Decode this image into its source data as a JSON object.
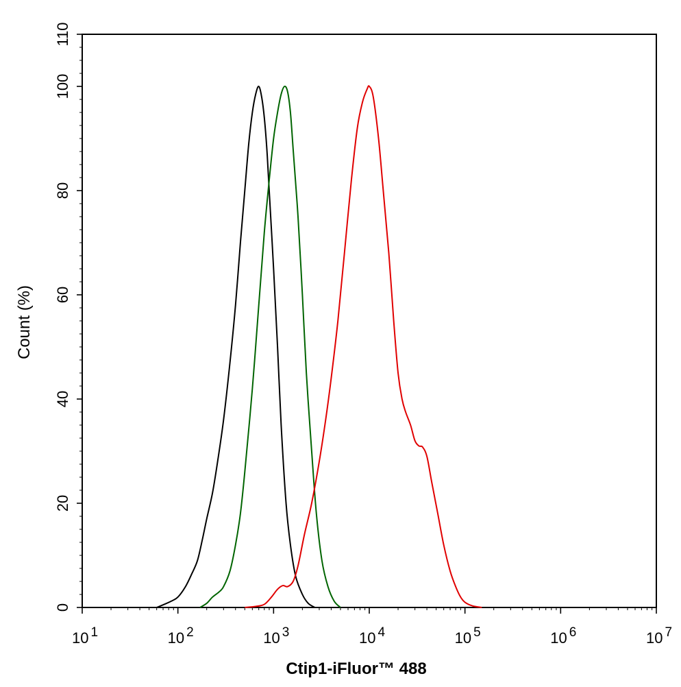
{
  "chart_data": {
    "type": "line",
    "xlabel": "Ctip1-iFluor™ 488",
    "ylabel": "Count  (%)",
    "xscale": "log",
    "xlim": [
      10,
      10000000
    ],
    "ylim": [
      0,
      110
    ],
    "x_ticks": [
      {
        "base": "10",
        "exp": "1",
        "value": 10
      },
      {
        "base": "10",
        "exp": "2",
        "value": 100
      },
      {
        "base": "10",
        "exp": "3",
        "value": 1000
      },
      {
        "base": "10",
        "exp": "4",
        "value": 10000
      },
      {
        "base": "10",
        "exp": "5",
        "value": 100000
      },
      {
        "base": "10",
        "exp": "6",
        "value": 1000000
      },
      {
        "base": "10",
        "exp": "7",
        "value": 10000000
      }
    ],
    "y_ticks": [
      "0",
      "20",
      "40",
      "60",
      "80",
      "100",
      "110"
    ],
    "grid": false,
    "legend": "none",
    "series": [
      {
        "color": "#000000",
        "points": [
          [
            60,
            0
          ],
          [
            70,
            0.5
          ],
          [
            85,
            1.2
          ],
          [
            100,
            2
          ],
          [
            120,
            4
          ],
          [
            140,
            6.5
          ],
          [
            160,
            9
          ],
          [
            180,
            13
          ],
          [
            200,
            17
          ],
          [
            230,
            22
          ],
          [
            260,
            28
          ],
          [
            300,
            36
          ],
          [
            350,
            47
          ],
          [
            400,
            58
          ],
          [
            450,
            70
          ],
          [
            500,
            80
          ],
          [
            550,
            89
          ],
          [
            600,
            95
          ],
          [
            650,
            98.5
          ],
          [
            700,
            100
          ],
          [
            750,
            98
          ],
          [
            800,
            94
          ],
          [
            850,
            88
          ],
          [
            900,
            80
          ],
          [
            1000,
            65
          ],
          [
            1100,
            50
          ],
          [
            1200,
            35
          ],
          [
            1350,
            20
          ],
          [
            1500,
            12
          ],
          [
            1700,
            6
          ],
          [
            2000,
            2.5
          ],
          [
            2300,
            0.8
          ],
          [
            2700,
            0
          ]
        ]
      },
      {
        "color": "#006400",
        "points": [
          [
            170,
            0
          ],
          [
            200,
            0.8
          ],
          [
            230,
            2
          ],
          [
            270,
            3
          ],
          [
            300,
            4
          ],
          [
            350,
            7
          ],
          [
            400,
            12
          ],
          [
            450,
            18
          ],
          [
            500,
            26
          ],
          [
            600,
            42
          ],
          [
            700,
            58
          ],
          [
            800,
            72
          ],
          [
            900,
            82
          ],
          [
            1000,
            90
          ],
          [
            1100,
            95
          ],
          [
            1200,
            98.5
          ],
          [
            1300,
            100
          ],
          [
            1400,
            99
          ],
          [
            1500,
            95
          ],
          [
            1600,
            88
          ],
          [
            1800,
            75
          ],
          [
            2000,
            60
          ],
          [
            2200,
            45
          ],
          [
            2500,
            30
          ],
          [
            2800,
            18
          ],
          [
            3200,
            9
          ],
          [
            3700,
            4
          ],
          [
            4300,
            1.2
          ],
          [
            5000,
            0
          ]
        ]
      },
      {
        "color": "#e00000",
        "points": [
          [
            500,
            0
          ],
          [
            650,
            0.2
          ],
          [
            800,
            0.6
          ],
          [
            950,
            2
          ],
          [
            1100,
            3.5
          ],
          [
            1250,
            4.2
          ],
          [
            1400,
            4
          ],
          [
            1600,
            5
          ],
          [
            1800,
            8
          ],
          [
            2100,
            14
          ],
          [
            2500,
            20
          ],
          [
            3000,
            28
          ],
          [
            3500,
            36
          ],
          [
            4000,
            44
          ],
          [
            4700,
            55
          ],
          [
            5500,
            68
          ],
          [
            6500,
            82
          ],
          [
            7500,
            92
          ],
          [
            8500,
            97
          ],
          [
            9500,
            99.5
          ],
          [
            10000,
            100
          ],
          [
            11000,
            98
          ],
          [
            12500,
            90
          ],
          [
            14000,
            80
          ],
          [
            16000,
            68
          ],
          [
            18000,
            55
          ],
          [
            20000,
            45
          ],
          [
            22000,
            40
          ],
          [
            24000,
            37.5
          ],
          [
            27000,
            35
          ],
          [
            30000,
            32
          ],
          [
            33000,
            31
          ],
          [
            36000,
            30.8
          ],
          [
            40000,
            29
          ],
          [
            45000,
            24
          ],
          [
            52000,
            18
          ],
          [
            60000,
            12
          ],
          [
            70000,
            7
          ],
          [
            80000,
            4
          ],
          [
            90000,
            2
          ],
          [
            100000,
            1
          ],
          [
            120000,
            0.3
          ],
          [
            150000,
            0
          ]
        ]
      }
    ]
  }
}
